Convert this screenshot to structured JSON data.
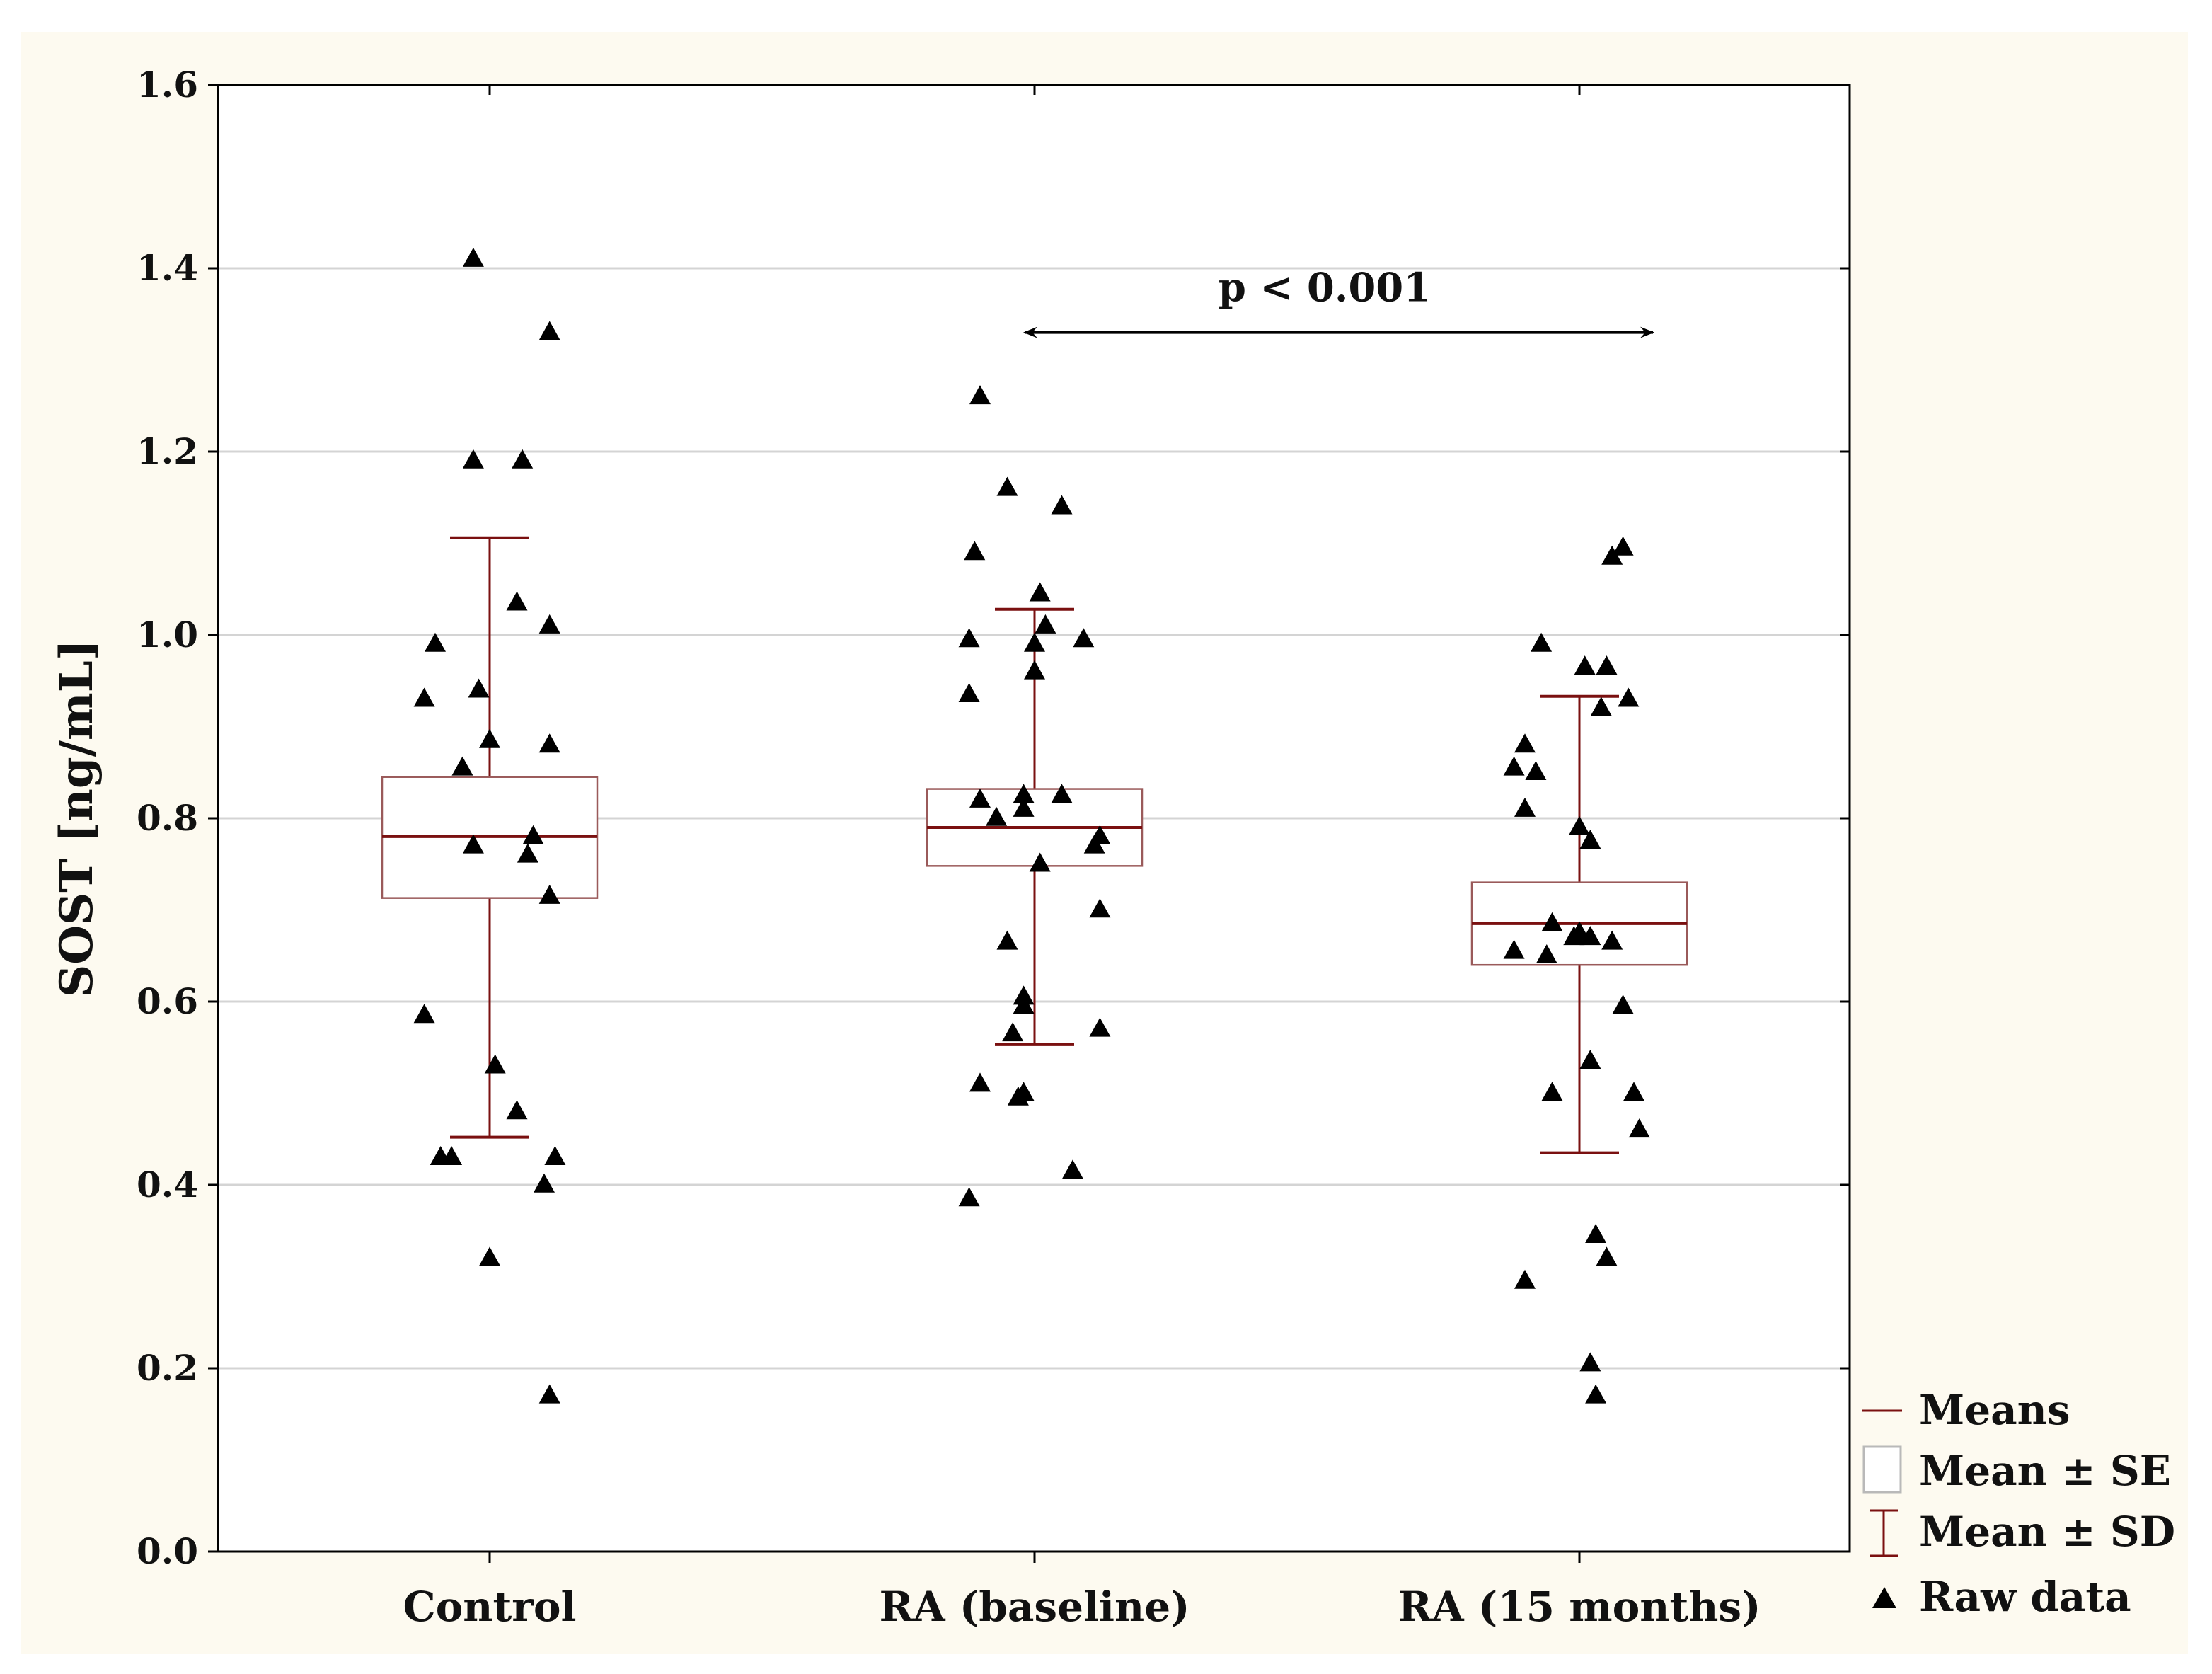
{
  "chart_data": {
    "type": "scatter",
    "subtype": "box-whisker with raw data points",
    "title": "",
    "xlabel": "",
    "ylabel": "SOST [ng/mL]",
    "ylim": [
      0.0,
      1.6
    ],
    "yticks": [
      0.0,
      0.2,
      0.4,
      0.6,
      0.8,
      1.0,
      1.2,
      1.4,
      1.6
    ],
    "ytick_labels": [
      "0.0",
      "0.2",
      "0.4",
      "0.6",
      "0.8",
      "1.0",
      "1.2",
      "1.4",
      "1.6"
    ],
    "grid": true,
    "legend_position": "bottom-right outside",
    "categories": [
      "Control",
      "RA (baseline)",
      "RA (15 months)"
    ],
    "groups": [
      {
        "name": "Control",
        "mean": 0.78,
        "se_low": 0.713,
        "se_high": 0.845,
        "sd_low": 0.452,
        "sd_high": 1.106,
        "raw": [
          [
            -0.03,
            1.41
          ],
          [
            0.11,
            1.33
          ],
          [
            -0.03,
            1.19
          ],
          [
            0.06,
            1.19
          ],
          [
            0.05,
            1.035
          ],
          [
            0.11,
            1.01
          ],
          [
            -0.1,
            0.99
          ],
          [
            -0.12,
            0.93
          ],
          [
            -0.02,
            0.94
          ],
          [
            0.0,
            0.885
          ],
          [
            0.11,
            0.88
          ],
          [
            -0.05,
            0.855
          ],
          [
            0.08,
            0.78
          ],
          [
            -0.03,
            0.77
          ],
          [
            0.07,
            0.76
          ],
          [
            0.11,
            0.715
          ],
          [
            -0.12,
            0.585
          ],
          [
            0.01,
            0.53
          ],
          [
            0.05,
            0.48
          ],
          [
            -0.09,
            0.43
          ],
          [
            -0.07,
            0.43
          ],
          [
            0.12,
            0.43
          ],
          [
            0.1,
            0.4
          ],
          [
            0.0,
            0.32
          ],
          [
            0.11,
            0.17
          ]
        ]
      },
      {
        "name": "RA (baseline)",
        "mean": 0.79,
        "se_low": 0.748,
        "se_high": 0.832,
        "sd_low": 0.553,
        "sd_high": 1.028,
        "raw": [
          [
            -0.1,
            1.26
          ],
          [
            -0.05,
            1.16
          ],
          [
            0.05,
            1.14
          ],
          [
            -0.11,
            1.09
          ],
          [
            0.01,
            1.045
          ],
          [
            0.02,
            1.01
          ],
          [
            -0.12,
            0.995
          ],
          [
            0.0,
            0.99
          ],
          [
            0.09,
            0.995
          ],
          [
            0.0,
            0.96
          ],
          [
            -0.12,
            0.935
          ],
          [
            0.05,
            0.825
          ],
          [
            -0.1,
            0.82
          ],
          [
            -0.02,
            0.825
          ],
          [
            -0.02,
            0.81
          ],
          [
            -0.07,
            0.8
          ],
          [
            0.12,
            0.78
          ],
          [
            0.11,
            0.77
          ],
          [
            0.01,
            0.75
          ],
          [
            0.12,
            0.7
          ],
          [
            -0.05,
            0.665
          ],
          [
            -0.02,
            0.605
          ],
          [
            -0.02,
            0.595
          ],
          [
            -0.04,
            0.565
          ],
          [
            0.12,
            0.57
          ],
          [
            -0.1,
            0.51
          ],
          [
            -0.02,
            0.5
          ],
          [
            -0.03,
            0.495
          ],
          [
            0.07,
            0.415
          ],
          [
            -0.12,
            0.385
          ]
        ]
      },
      {
        "name": "RA (15 months)",
        "mean": 0.685,
        "se_low": 0.64,
        "se_high": 0.73,
        "sd_low": 0.435,
        "sd_high": 0.933,
        "raw": [
          [
            0.08,
            1.095
          ],
          [
            0.06,
            1.085
          ],
          [
            -0.07,
            0.99
          ],
          [
            0.05,
            0.965
          ],
          [
            0.01,
            0.965
          ],
          [
            0.04,
            0.92
          ],
          [
            0.09,
            0.93
          ],
          [
            -0.1,
            0.88
          ],
          [
            -0.12,
            0.855
          ],
          [
            -0.08,
            0.85
          ],
          [
            -0.1,
            0.81
          ],
          [
            0.0,
            0.79
          ],
          [
            0.02,
            0.775
          ],
          [
            -0.05,
            0.685
          ],
          [
            0.0,
            0.675
          ],
          [
            0.02,
            0.67
          ],
          [
            -0.01,
            0.67
          ],
          [
            -0.12,
            0.655
          ],
          [
            -0.06,
            0.65
          ],
          [
            0.06,
            0.665
          ],
          [
            0.08,
            0.595
          ],
          [
            0.02,
            0.535
          ],
          [
            -0.05,
            0.5
          ],
          [
            0.1,
            0.5
          ],
          [
            0.11,
            0.46
          ],
          [
            0.03,
            0.345
          ],
          [
            0.05,
            0.32
          ],
          [
            -0.1,
            0.295
          ],
          [
            0.02,
            0.205
          ],
          [
            0.03,
            0.17
          ]
        ]
      }
    ],
    "annotation": {
      "text": "p < 0.001",
      "from": "RA (baseline)",
      "to": "RA (15 months)",
      "y": 1.33
    },
    "legend": [
      {
        "key": "means",
        "label": "Means"
      },
      {
        "key": "se",
        "label": "Mean ± SE"
      },
      {
        "key": "sd",
        "label": "Mean ± SD"
      },
      {
        "key": "raw",
        "label": "Raw data"
      }
    ],
    "colors": {
      "background": "#fdfaf0",
      "plot": "#ffffff",
      "box": "#7a1010",
      "points": "#000000",
      "grid": "#d4d4d4"
    }
  }
}
